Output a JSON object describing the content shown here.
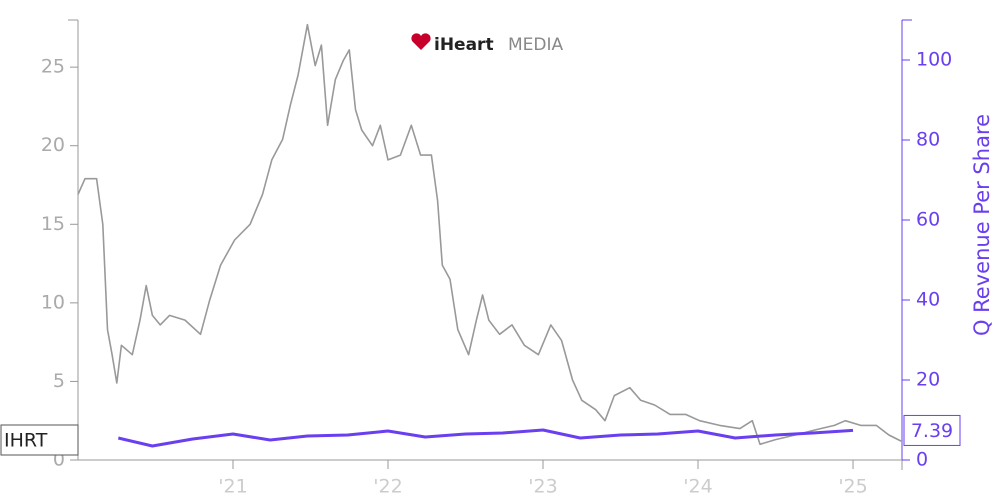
{
  "chart_data": {
    "type": "line",
    "watermark": {
      "brand": "iHeart",
      "suffix": "MEDIA"
    },
    "y2_label": "Q Revenue Per Share",
    "xlim": [
      2020,
      2025.316
    ],
    "xticks": [
      {
        "value": 2021,
        "label": "'21"
      },
      {
        "value": 2022,
        "label": "'22"
      },
      {
        "value": 2023,
        "label": "'23"
      },
      {
        "value": 2024,
        "label": "'24"
      },
      {
        "value": 2025,
        "label": "'25"
      }
    ],
    "ylim": [
      0,
      28
    ],
    "yticks": [
      0,
      5,
      10,
      15,
      20,
      25
    ],
    "y2lim": [
      0,
      110
    ],
    "y2ticks": [
      0,
      20,
      40,
      60,
      80,
      100
    ],
    "series": [
      {
        "name": "IHRT",
        "color": "#999999",
        "x": [
          2020.0,
          2020.045,
          2020.12,
          2020.16,
          2020.19,
          2020.22,
          2020.25,
          2020.28,
          2020.35,
          2020.4,
          2020.44,
          2020.48,
          2020.53,
          2020.59,
          2020.69,
          2020.79,
          2020.85,
          2020.92,
          2021.01,
          2021.11,
          2021.19,
          2021.25,
          2021.32,
          2021.37,
          2021.42,
          2021.48,
          2021.53,
          2021.57,
          2021.61,
          2021.66,
          2021.71,
          2021.75,
          2021.79,
          2021.83,
          2021.9,
          2021.95,
          2022.0,
          2022.08,
          2022.15,
          2022.21,
          2022.28,
          2022.32,
          2022.35,
          2022.4,
          2022.45,
          2022.52,
          2022.57,
          2022.61,
          2022.65,
          2022.72,
          2022.8,
          2022.88,
          2022.97,
          2023.05,
          2023.12,
          2023.19,
          2023.25,
          2023.34,
          2023.4,
          2023.46,
          2023.56,
          2023.63,
          2023.72,
          2023.82,
          2023.92,
          2024.01,
          2024.14,
          2024.27,
          2024.35,
          2024.4,
          2024.5,
          2024.63,
          2024.75,
          2024.88,
          2024.95,
          2025.05,
          2025.15,
          2025.23,
          2025.31
        ],
        "values": [
          16.9,
          17.9,
          17.9,
          15,
          8.3,
          6.7,
          4.9,
          7.3,
          6.7,
          8.9,
          11.1,
          9.2,
          8.6,
          9.2,
          8.9,
          8,
          10.2,
          12.4,
          14,
          15,
          16.9,
          19.1,
          20.4,
          22.6,
          24.5,
          27.7,
          25.1,
          26.4,
          21.3,
          24.2,
          25.4,
          26.1,
          22.3,
          21,
          20,
          21.3,
          19.1,
          19.4,
          21.3,
          19.4,
          19.4,
          16.5,
          12.4,
          11.5,
          8.3,
          6.7,
          8.9,
          10.5,
          8.9,
          8,
          8.6,
          7.3,
          6.7,
          8.6,
          7.6,
          5.1,
          3.8,
          3.2,
          2.5,
          4.1,
          4.6,
          3.8,
          3.5,
          2.9,
          2.9,
          2.5,
          2.2,
          2.0,
          2.5,
          1.0,
          1.3,
          1.6,
          1.9,
          2.2,
          2.5,
          2.2,
          2.2,
          1.6,
          1.2
        ]
      },
      {
        "name": "Q Revenue Per Share",
        "color": "#6a3ff0",
        "axis": "y2",
        "x": [
          2020.26,
          2020.48,
          2020.74,
          2021.0,
          2021.24,
          2021.48,
          2021.74,
          2022.0,
          2022.24,
          2022.5,
          2022.74,
          2023.0,
          2023.24,
          2023.5,
          2023.74,
          2024.0,
          2024.24,
          2024.5,
          2024.74,
          2025.0
        ],
        "values": [
          5.5,
          3.5,
          5.25,
          6.5,
          5,
          6,
          6.25,
          7.25,
          5.75,
          6.5,
          6.75,
          7.5,
          5.5,
          6.25,
          6.5,
          7.25,
          5.5,
          6.25,
          6.75,
          7.39
        ]
      }
    ]
  }
}
